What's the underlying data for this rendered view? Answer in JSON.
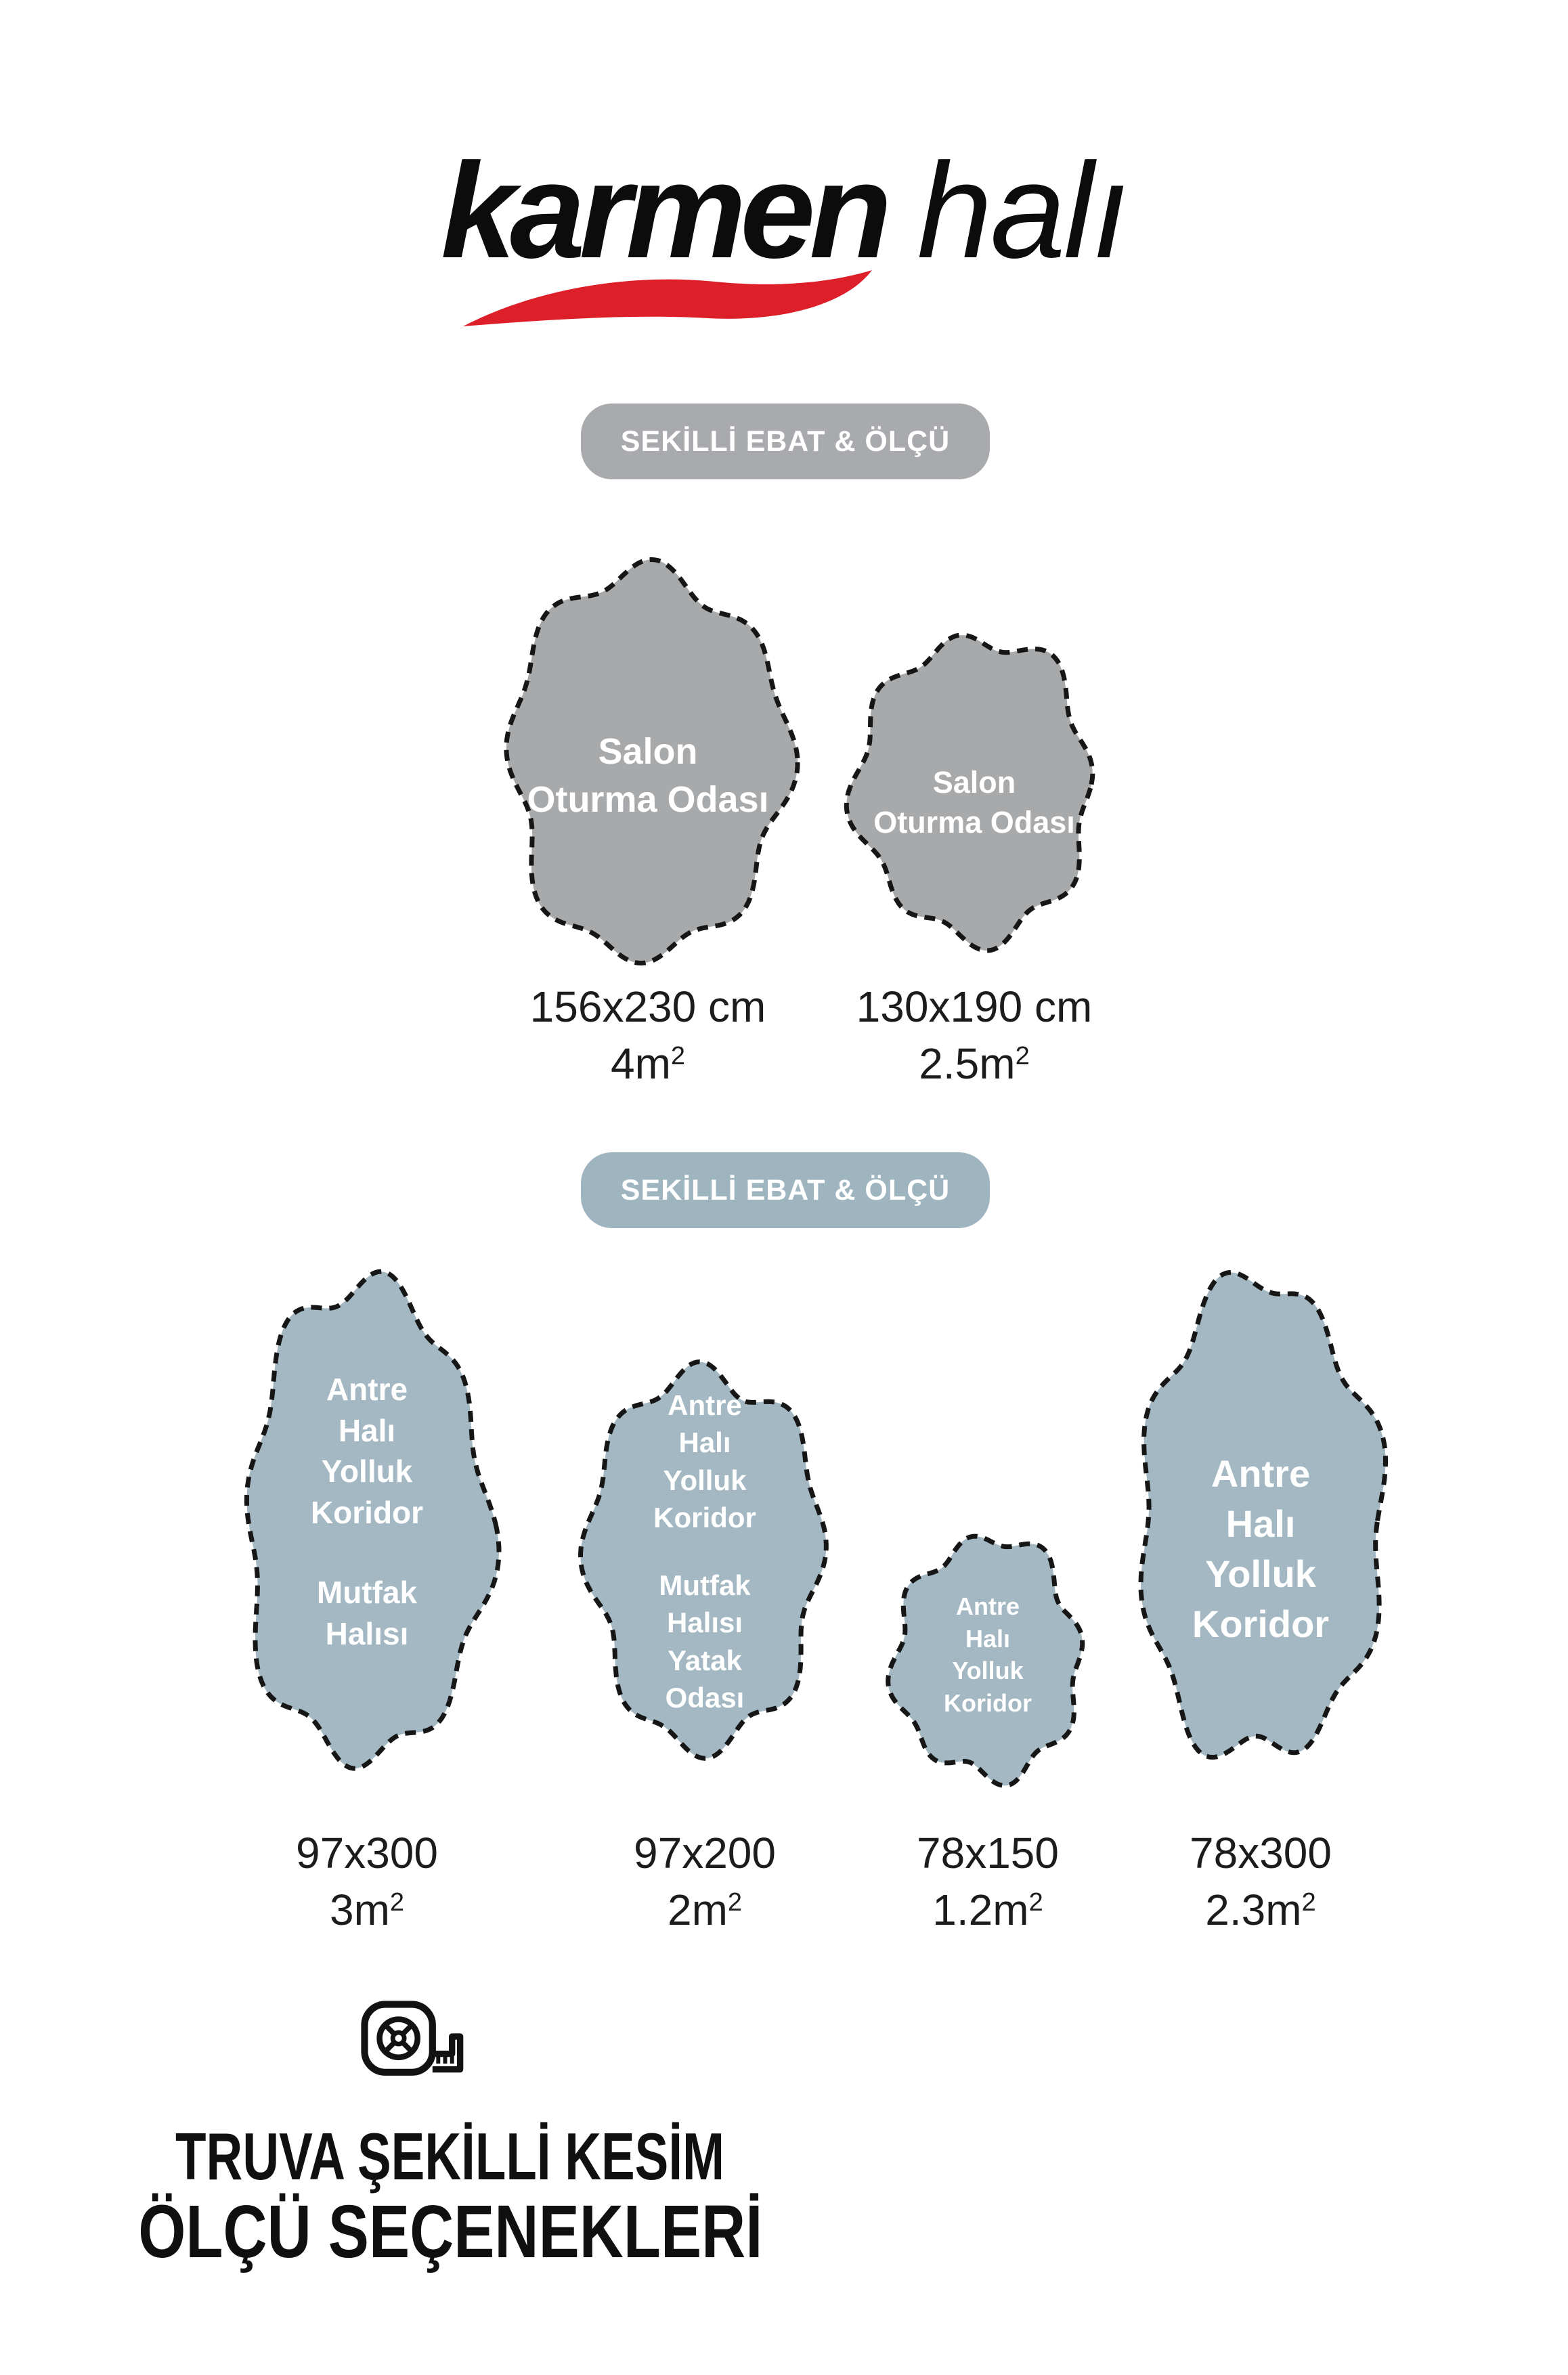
{
  "brand": {
    "name_bold": "karmen",
    "name_light": "halı"
  },
  "section_top": {
    "badge": "SEKİLLİ EBAT & ÖLÇÜ",
    "rugs": [
      {
        "label": "Salon\nOturma Odası",
        "size": "156x230 cm",
        "area": "4m",
        "area_exp": "2"
      },
      {
        "label": "Salon\nOturma Odası",
        "size": "130x190 cm",
        "area": "2.5m",
        "area_exp": "2"
      }
    ]
  },
  "section_bottom": {
    "badge": "SEKİLLİ EBAT & ÖLÇÜ",
    "rugs": [
      {
        "label_primary": "Antre\nHalı\nYolluk\nKoridor",
        "label_secondary": "Mutfak\nHalısı",
        "size": "97x300",
        "area": "3m",
        "area_exp": "2"
      },
      {
        "label_primary": "Antre\nHalı\nYolluk\nKoridor",
        "label_secondary": "Mutfak\nHalısı\nYatak\nOdası",
        "size": "97x200",
        "area": "2m",
        "area_exp": "2"
      },
      {
        "label_primary": "Antre\nHalı\nYolluk\nKoridor",
        "label_secondary": "",
        "size": "78x150",
        "area": "1.2m",
        "area_exp": "2"
      },
      {
        "label_primary": "Antre\nHalı\nYolluk\nKoridor",
        "label_secondary": "",
        "size": "78x300",
        "area": "2.3m",
        "area_exp": "2"
      }
    ]
  },
  "footer": {
    "line1": "TRUVA ŞEKİLLİ KESİM",
    "line2": "ÖLÇÜ SEÇENEKLERİ"
  },
  "colors": {
    "gray": "#a7a9ab",
    "blue": "#a3b8c2",
    "badge_gray": "#a8aaad",
    "badge_blue": "#9eb5bf",
    "red": "#dd1f2a",
    "ink": "#161616",
    "white": "#ffffff"
  }
}
